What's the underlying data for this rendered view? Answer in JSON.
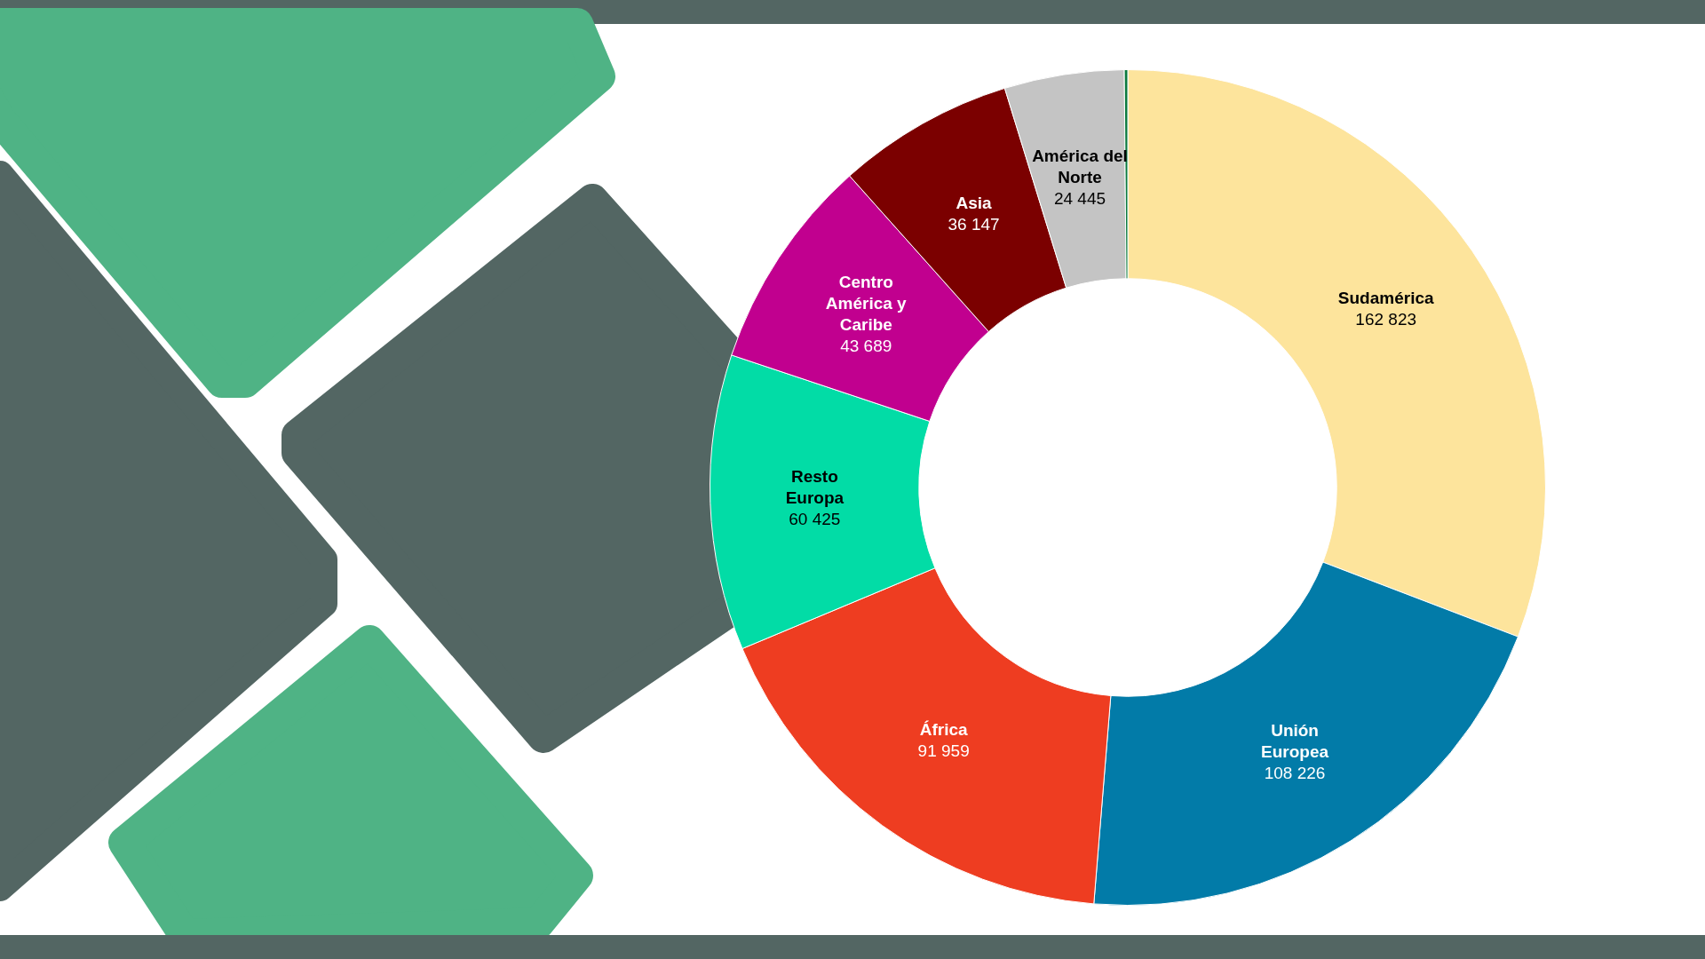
{
  "chart_data": {
    "type": "donut",
    "categories": [
      "Sudamérica",
      "Unión Europea",
      "África",
      "Resto Europa",
      "Centro América y Caribe",
      "Asia",
      "América del Norte",
      null
    ],
    "values": [
      162823,
      108226,
      91959,
      60425,
      43689,
      36147,
      24445,
      700
    ],
    "colors": [
      "#fde49c",
      "#027ba8",
      "#ee3d21",
      "#02dca6",
      "#c1008f",
      "#7b0000",
      "#c4c4c4",
      "#0c7a3e"
    ],
    "value_labels": [
      "162 823",
      "108 226",
      "91 959",
      "60 425",
      "43 689",
      "36 147",
      "24 445",
      null
    ],
    "legend": false
  }
}
